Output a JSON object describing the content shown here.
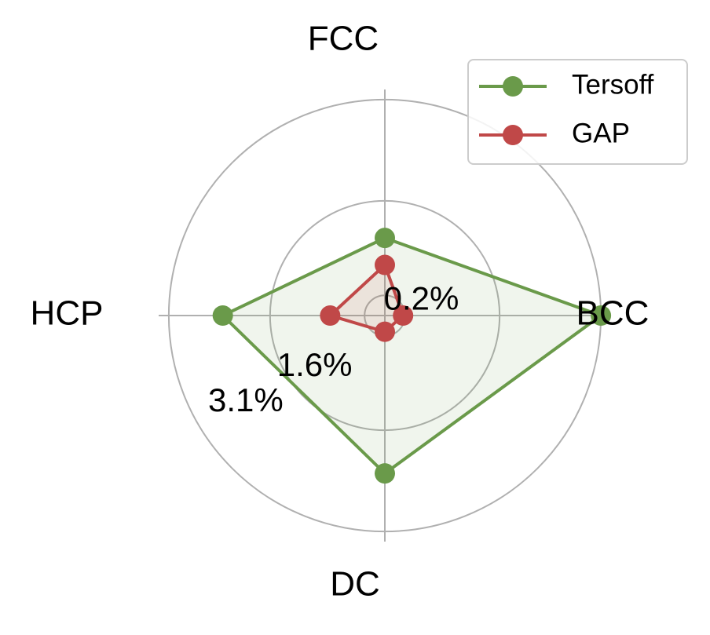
{
  "chart_data": {
    "type": "radar",
    "categories": [
      "FCC",
      "BCC",
      "DC",
      "HCP"
    ],
    "series": [
      {
        "name": "Tersoff",
        "color": "#6a9a4a",
        "values": [
          1.05,
          3.1,
          2.24,
          2.3
        ]
      },
      {
        "name": "GAP",
        "color": "#c04848",
        "values": [
          0.65,
          0.17,
          0.14,
          0.71
        ]
      }
    ],
    "ylim": [
      -0.1,
      3.25
    ],
    "yticks": [
      {
        "value": 0.2,
        "label": "0.2%"
      },
      {
        "value": 1.6,
        "label": "1.6%"
      },
      {
        "value": 3.1,
        "label": "3.1%"
      }
    ],
    "grid": true,
    "legend": "upper right"
  }
}
